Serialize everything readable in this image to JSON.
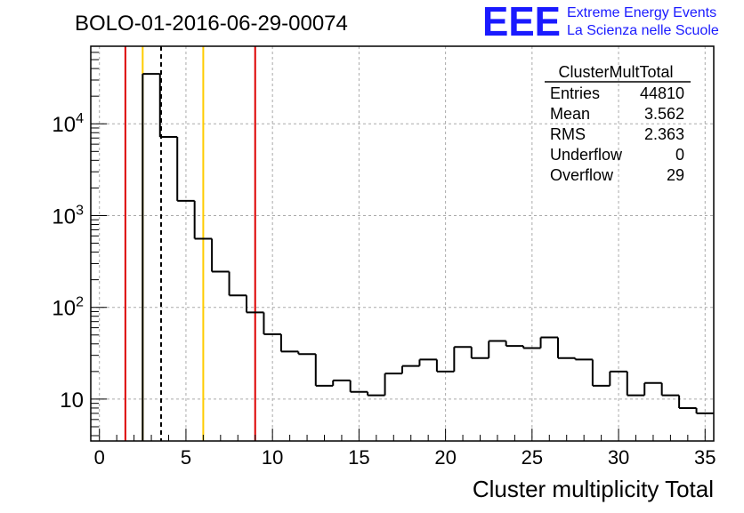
{
  "header": {
    "run_title": "BOLO-01-2016-06-29-00074",
    "logo_text": "EEE",
    "logo_line1": "Extreme Energy Events",
    "logo_line2": "La Scienza nelle Scuole",
    "logo_color": "#1a1aff"
  },
  "stats": {
    "title": "ClusterMultTotal",
    "rows": [
      {
        "label": "Entries",
        "value": "44810"
      },
      {
        "label": "Mean",
        "value": "3.562"
      },
      {
        "label": "RMS",
        "value": "2.363"
      },
      {
        "label": "Underflow",
        "value": "0"
      },
      {
        "label": "Overflow",
        "value": "29"
      }
    ]
  },
  "chart_data": {
    "type": "histogram-step",
    "title": "BOLO-01-2016-06-29-00074",
    "xlabel": "Cluster multiplicity Total",
    "ylabel": "",
    "xlim": [
      -0.5,
      35.5
    ],
    "ylim": [
      3.5,
      70000
    ],
    "yscale": "log",
    "grid": true,
    "x_ticks": [
      "0",
      "5",
      "10",
      "15",
      "20",
      "25",
      "30",
      "35"
    ],
    "y_ticks": [
      {
        "base": "10",
        "exp": "",
        "value": 10
      },
      {
        "base": "10",
        "exp": "2",
        "value": 100
      },
      {
        "base": "10",
        "exp": "3",
        "value": 1000
      },
      {
        "base": "10",
        "exp": "4",
        "value": 10000
      }
    ],
    "bin_edges_start": 2.5,
    "bin_width": 1,
    "values": [
      35000,
      7200,
      1450,
      560,
      245,
      135,
      88,
      51,
      33,
      31,
      14,
      16,
      12,
      11,
      19,
      23,
      27,
      20,
      37,
      28,
      43,
      38,
      36,
      47,
      28,
      27,
      14,
      20,
      11,
      15,
      11,
      8,
      7
    ],
    "vertical_lines": [
      {
        "x": 1.5,
        "color": "#dd0000",
        "style": "solid"
      },
      {
        "x": 2.5,
        "color": "#ffcc00",
        "style": "solid"
      },
      {
        "x": 3.562,
        "color": "#000000",
        "style": "dashed"
      },
      {
        "x": 6.0,
        "color": "#ffcc00",
        "style": "solid"
      },
      {
        "x": 9.0,
        "color": "#dd0000",
        "style": "solid"
      }
    ]
  }
}
